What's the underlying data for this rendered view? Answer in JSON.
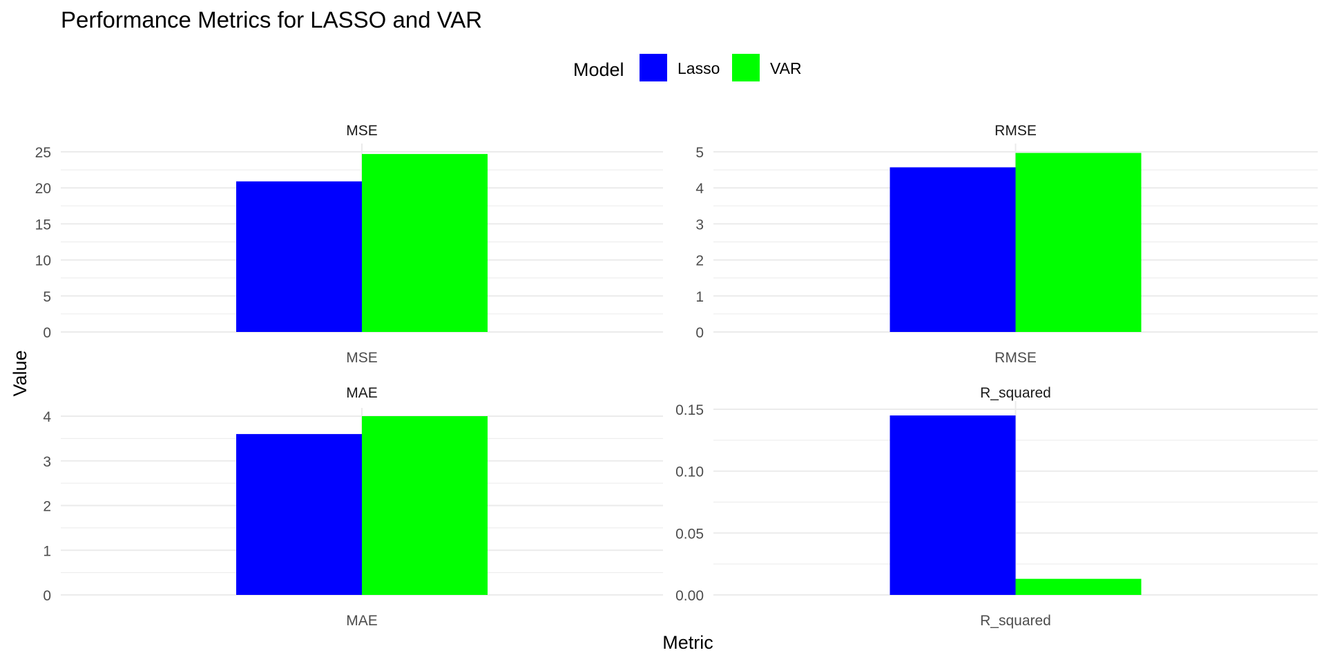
{
  "colors": {
    "lasso": "#0000FF",
    "var": "#00FF00",
    "grid": "#EBEBEB",
    "text": "#000000",
    "tick_text": "#4D4D4D"
  },
  "chart_data": {
    "type": "bar",
    "title": "Performance Metrics for LASSO and VAR",
    "xlabel": "Metric",
    "ylabel": "Value",
    "grid": true,
    "legend": {
      "title": "Model",
      "placement": "top",
      "entries": [
        "Lasso",
        "VAR"
      ]
    },
    "panels": [
      {
        "name": "MSE",
        "categories": [
          "MSE"
        ],
        "series": [
          {
            "name": "Lasso",
            "values": [
              20.9
            ]
          },
          {
            "name": "VAR",
            "values": [
              24.7
            ]
          }
        ],
        "ylim": [
          0,
          25
        ],
        "yticks": [
          0,
          5,
          10,
          15,
          20,
          25
        ],
        "ytick_labels": [
          "0",
          "5",
          "10",
          "15",
          "20",
          "25"
        ]
      },
      {
        "name": "RMSE",
        "categories": [
          "RMSE"
        ],
        "series": [
          {
            "name": "Lasso",
            "values": [
              4.57
            ]
          },
          {
            "name": "VAR",
            "values": [
              4.97
            ]
          }
        ],
        "ylim": [
          0,
          5
        ],
        "yticks": [
          0,
          1,
          2,
          3,
          4,
          5
        ],
        "ytick_labels": [
          "0",
          "1",
          "2",
          "3",
          "4",
          "5"
        ]
      },
      {
        "name": "MAE",
        "categories": [
          "MAE"
        ],
        "series": [
          {
            "name": "Lasso",
            "values": [
              3.6
            ]
          },
          {
            "name": "VAR",
            "values": [
              4.0
            ]
          }
        ],
        "ylim": [
          0,
          4
        ],
        "yticks": [
          0,
          1,
          2,
          3,
          4
        ],
        "ytick_labels": [
          "0",
          "1",
          "2",
          "3",
          "4"
        ]
      },
      {
        "name": "R_squared",
        "categories": [
          "R_squared"
        ],
        "series": [
          {
            "name": "Lasso",
            "values": [
              0.145
            ]
          },
          {
            "name": "VAR",
            "values": [
              0.013
            ]
          }
        ],
        "ylim": [
          0,
          0.15
        ],
        "yticks": [
          0,
          0.05,
          0.1,
          0.15
        ],
        "ytick_labels": [
          "0.00",
          "0.05",
          "0.10",
          "0.15"
        ]
      }
    ]
  }
}
